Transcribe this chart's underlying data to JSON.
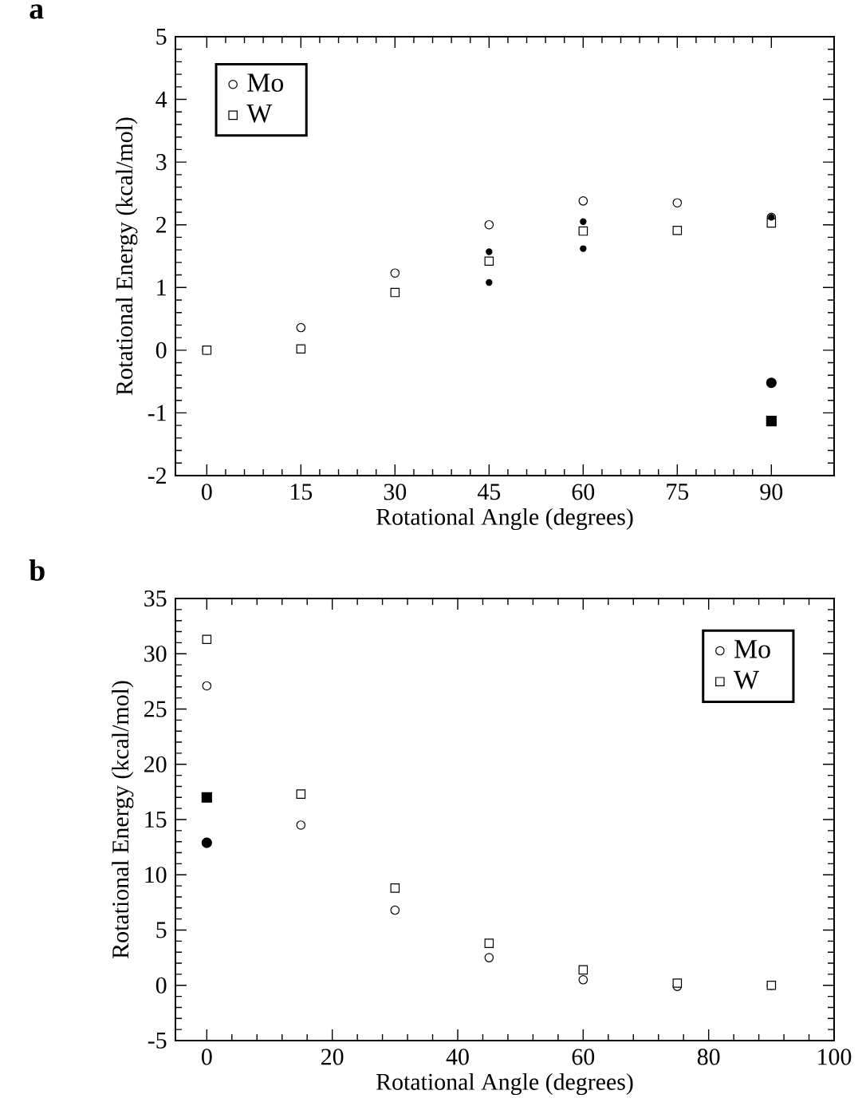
{
  "chart_data": [
    {
      "type": "scatter",
      "title": "a",
      "xlabel": "Rotational Angle (degrees)",
      "ylabel": "Rotational Energy (kcal/mol)",
      "xlim": [
        -5,
        100
      ],
      "ylim": [
        -2,
        5
      ],
      "xticks": [
        0,
        15,
        30,
        45,
        60,
        75,
        90
      ],
      "yticks": [
        -2,
        -1,
        0,
        1,
        2,
        3,
        4,
        5
      ],
      "legend": "top left",
      "series": [
        {
          "name": "Mo",
          "marker": "circle",
          "color": "#000000",
          "x": [
            0,
            15,
            30,
            45,
            60,
            75,
            90
          ],
          "values": [
            0,
            0.36,
            1.23,
            2.0,
            2.38,
            2.35,
            2.12
          ]
        },
        {
          "name": "W",
          "marker": "square",
          "color": "#000000",
          "x": [
            0,
            15,
            30,
            45,
            60,
            75,
            90
          ],
          "values": [
            0,
            0.02,
            0.92,
            1.42,
            1.9,
            1.91,
            2.03
          ]
        },
        {
          "marker": "circle",
          "color": "#000000",
          "x": [
            45,
            45,
            60,
            60,
            90
          ],
          "values": [
            1.57,
            1.08,
            2.05,
            1.62,
            2.12
          ]
        },
        {
          "marker": "circle",
          "color": "#000000",
          "x": [
            90
          ],
          "values": [
            -0.52
          ]
        },
        {
          "marker": "square",
          "color": "#000000",
          "x": [
            90
          ],
          "values": [
            -1.13
          ]
        }
      ]
    },
    {
      "type": "scatter",
      "title": "b",
      "xlabel": "Rotational Angle (degrees)",
      "ylabel": "Rotational Energy (kcal/mol)",
      "xlim": [
        -5,
        100
      ],
      "ylim": [
        -5,
        35
      ],
      "xticks": [
        0,
        20,
        40,
        60,
        80,
        100
      ],
      "yticks": [
        -5,
        0,
        5,
        10,
        15,
        20,
        25,
        30,
        35
      ],
      "legend": "top right",
      "series": [
        {
          "name": "Mo",
          "marker": "circle",
          "color": "#000000",
          "x": [
            0,
            15,
            30,
            45,
            60,
            75,
            90
          ],
          "values": [
            27.1,
            14.5,
            6.8,
            2.5,
            0.5,
            -0.1,
            0
          ]
        },
        {
          "name": "W",
          "marker": "square",
          "color": "#000000",
          "x": [
            0,
            15,
            30,
            45,
            60,
            75,
            90
          ],
          "values": [
            31.3,
            17.3,
            8.8,
            3.8,
            1.4,
            0.2,
            0
          ]
        },
        {
          "marker": "circle",
          "color": "#000000",
          "x": [
            0
          ],
          "values": [
            12.9
          ]
        },
        {
          "marker": "square",
          "color": "#000000",
          "x": [
            0
          ],
          "values": [
            17.0
          ]
        }
      ]
    }
  ]
}
